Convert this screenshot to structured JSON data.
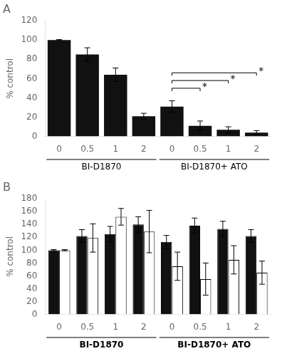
{
  "chart_data": [
    {
      "type": "bar",
      "title": "A",
      "y_label": "% control",
      "categories": [
        "0",
        "0.5",
        "1",
        "2",
        "0",
        "0.5",
        "1",
        "2"
      ],
      "values": [
        100,
        85,
        64,
        21,
        31,
        11,
        7,
        4
      ],
      "errors": [
        0.5,
        7,
        7,
        3,
        6,
        5,
        3,
        2
      ],
      "color": "#111111",
      "ylim": [
        0,
        120
      ],
      "yticks": [
        0,
        20,
        40,
        60,
        80,
        100,
        120
      ],
      "grid": false,
      "group_labels": [
        "BI-D1870",
        "BI-D1870+ ATO"
      ],
      "annotations": [
        {
          "text": "*",
          "y": 50,
          "from": 4,
          "to": 5
        },
        {
          "text": "*",
          "y": 58,
          "from": 4,
          "to": 6
        },
        {
          "text": "*",
          "y": 66,
          "from": 4,
          "to": 7
        }
      ]
    },
    {
      "type": "bar",
      "title": "B",
      "y_label": "% control",
      "categories": [
        "0",
        "0.5",
        "1",
        "2",
        "0",
        "0.5",
        "1",
        "2"
      ],
      "series": [
        {
          "color": "#111111",
          "values": [
            100,
            122,
            125,
            140,
            113,
            138,
            133,
            122
          ],
          "errors": [
            1,
            10,
            12,
            12,
            10,
            12,
            12,
            10
          ]
        },
        {
          "color": "#ffffff",
          "values": [
            100,
            119,
            152,
            129,
            75,
            55,
            85,
            65
          ],
          "errors": [
            1,
            22,
            13,
            33,
            22,
            25,
            22,
            18
          ]
        }
      ],
      "ylim": [
        0,
        180
      ],
      "yticks": [
        0,
        20,
        40,
        60,
        80,
        100,
        120,
        140,
        160,
        180
      ],
      "grid": false,
      "group_labels": [
        "BI-D1870",
        "BI-D1870+ ATO"
      ],
      "group_labels_bold": true
    }
  ]
}
